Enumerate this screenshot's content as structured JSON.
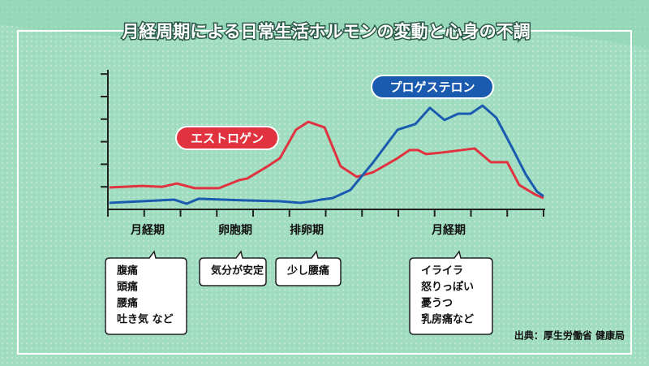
{
  "chart_data": {
    "type": "line",
    "title": "月経周期による日常生活ホルモンの変動と心身の不調",
    "series": [
      {
        "name": "エストロゲン",
        "color": "#e0323f",
        "x": [
          0.04,
          0.94,
          1.5,
          1.9,
          2.39,
          3.06,
          3.62,
          3.84,
          4.4,
          4.74,
          5.18,
          5.52,
          5.97,
          6.41,
          6.86,
          7.31,
          7.98,
          8.31,
          8.54,
          8.76,
          9.21,
          10.1,
          10.55,
          11.0,
          11.33,
          11.78,
          12.0
        ],
        "values": [
          0.97,
          1.04,
          1.0,
          1.15,
          0.94,
          0.94,
          1.3,
          1.37,
          1.91,
          2.27,
          3.53,
          3.88,
          3.63,
          1.91,
          1.44,
          1.65,
          2.27,
          2.63,
          2.63,
          2.45,
          2.52,
          2.7,
          2.09,
          2.09,
          1.08,
          0.65,
          0.5
        ]
      },
      {
        "name": "プロゲステロン",
        "color": "#1a5bb0",
        "x": [
          0.04,
          0.94,
          1.83,
          2.17,
          2.5,
          3.73,
          4.74,
          5.3,
          5.63,
          5.86,
          6.19,
          6.68,
          7.31,
          7.98,
          8.47,
          8.87,
          9.27,
          9.65,
          9.99,
          10.32,
          10.7,
          11.11,
          11.51,
          11.82,
          12.0
        ],
        "values": [
          0.29,
          0.36,
          0.43,
          0.25,
          0.47,
          0.4,
          0.36,
          0.29,
          0.36,
          0.43,
          0.5,
          0.86,
          2.09,
          3.53,
          3.78,
          4.5,
          3.96,
          4.24,
          4.24,
          4.6,
          4.06,
          2.81,
          1.55,
          0.79,
          0.58
        ]
      }
    ],
    "xlim": [
      0,
      12
    ],
    "ylim": [
      0,
      6
    ],
    "xticks": [
      0,
      1,
      2,
      3,
      4,
      5,
      6,
      7,
      8,
      9,
      10,
      11,
      12
    ],
    "yticks": [
      1,
      2,
      3,
      4,
      5,
      6
    ],
    "phases": [
      {
        "label": "月経期",
        "notes": [
          "腹痛",
          "頭痛",
          "腰痛",
          "吐き気 など"
        ]
      },
      {
        "label": "卵胞期",
        "notes": [
          "気分が安定"
        ]
      },
      {
        "label": "排卵期",
        "notes": [
          "少し腰痛"
        ]
      },
      {
        "label": "月経期",
        "notes": [
          "イライラ",
          "怒りっぽい",
          "憂うつ",
          "乳房痛など"
        ]
      }
    ],
    "source": "出典：厚生労働省 健康局"
  }
}
